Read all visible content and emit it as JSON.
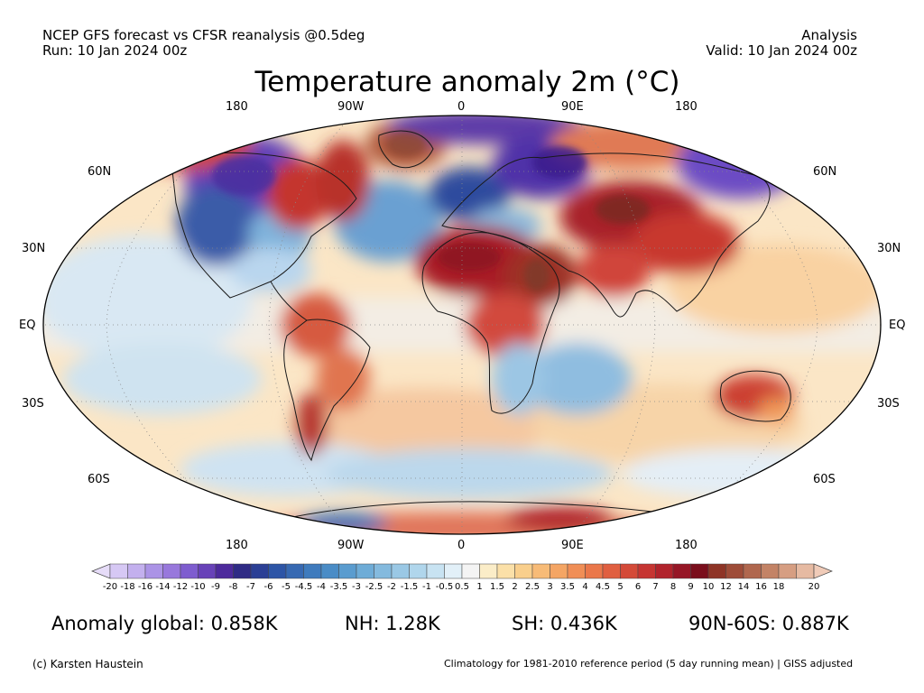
{
  "header": {
    "line1_left": "NCEP GFS forecast vs CFSR reanalysis @0.5deg",
    "line2_left": "Run: 10 Jan 2024 00z",
    "line1_right": "Analysis",
    "line2_right": "Valid: 10 Jan 2024 00z"
  },
  "title": "Temperature anomaly 2m (°C)",
  "map": {
    "projection": "Robinson",
    "lon_labels": [
      "180",
      "90W",
      "0",
      "90E",
      "180"
    ],
    "lat_labels": [
      "60N",
      "30N",
      "EQ",
      "30S",
      "60S"
    ],
    "anomaly_regions": [
      {
        "region": "North America interior",
        "level": "-9"
      },
      {
        "region": "Eastern Canada / Greenland",
        "level": "12"
      },
      {
        "region": "Scandinavia / NW Russia",
        "level": "-9"
      },
      {
        "region": "Central Asia / China",
        "level": "8"
      },
      {
        "region": "Sahara / Arabia",
        "level": "6"
      },
      {
        "region": "Antarctica coast",
        "level": "7"
      }
    ]
  },
  "colorbar": {
    "ticks": [
      "-20",
      "-18",
      "-16",
      "-14",
      "-12",
      "-10",
      "-9",
      "-8",
      "-7",
      "-6",
      "-5",
      "-4.5",
      "-4",
      "-3.5",
      "-3",
      "-2.5",
      "-2",
      "-1.5",
      "-1",
      "-0.5",
      "0.5",
      "1",
      "1.5",
      "2",
      "2.5",
      "3",
      "3.5",
      "4",
      "4.5",
      "5",
      "6",
      "7",
      "8",
      "9",
      "10",
      "12",
      "14",
      "16",
      "18",
      "20"
    ],
    "colors": [
      "#d6c8f4",
      "#c3b0ee",
      "#ab93e6",
      "#9878dc",
      "#7e5dcf",
      "#6842b8",
      "#4d2a9c",
      "#2f2b85",
      "#2b3f95",
      "#2d55a6",
      "#3769b2",
      "#3f7bbd",
      "#4a8cc6",
      "#5a9ccf",
      "#6eacd7",
      "#84bade",
      "#9ac8e5",
      "#b0d6ec",
      "#c8e3f2",
      "#e2f0f8",
      "#f4f4f4",
      "#fbedc8",
      "#fbe0a8",
      "#f9cf8c",
      "#f7bb77",
      "#f4a564",
      "#f08e56",
      "#ea774a",
      "#e05f40",
      "#d44a38",
      "#c63532",
      "#b1232c",
      "#961626",
      "#7a0e1c",
      "#8e3426",
      "#9e4c38",
      "#b0674e",
      "#c38366",
      "#d69e82",
      "#e6baa2"
    ],
    "under_color": "#e6dcf8",
    "over_color": "#f0cbb8"
  },
  "stats": {
    "global": "Anomaly global: 0.858K",
    "nh": "NH: 1.28K",
    "sh": "SH: 0.436K",
    "arctic": "90N-60S: 0.887K"
  },
  "footer": {
    "left": "(c) Karsten Haustein",
    "right": "Climatology for 1981-2010 reference period (5 day running mean) | GISS adjusted"
  }
}
